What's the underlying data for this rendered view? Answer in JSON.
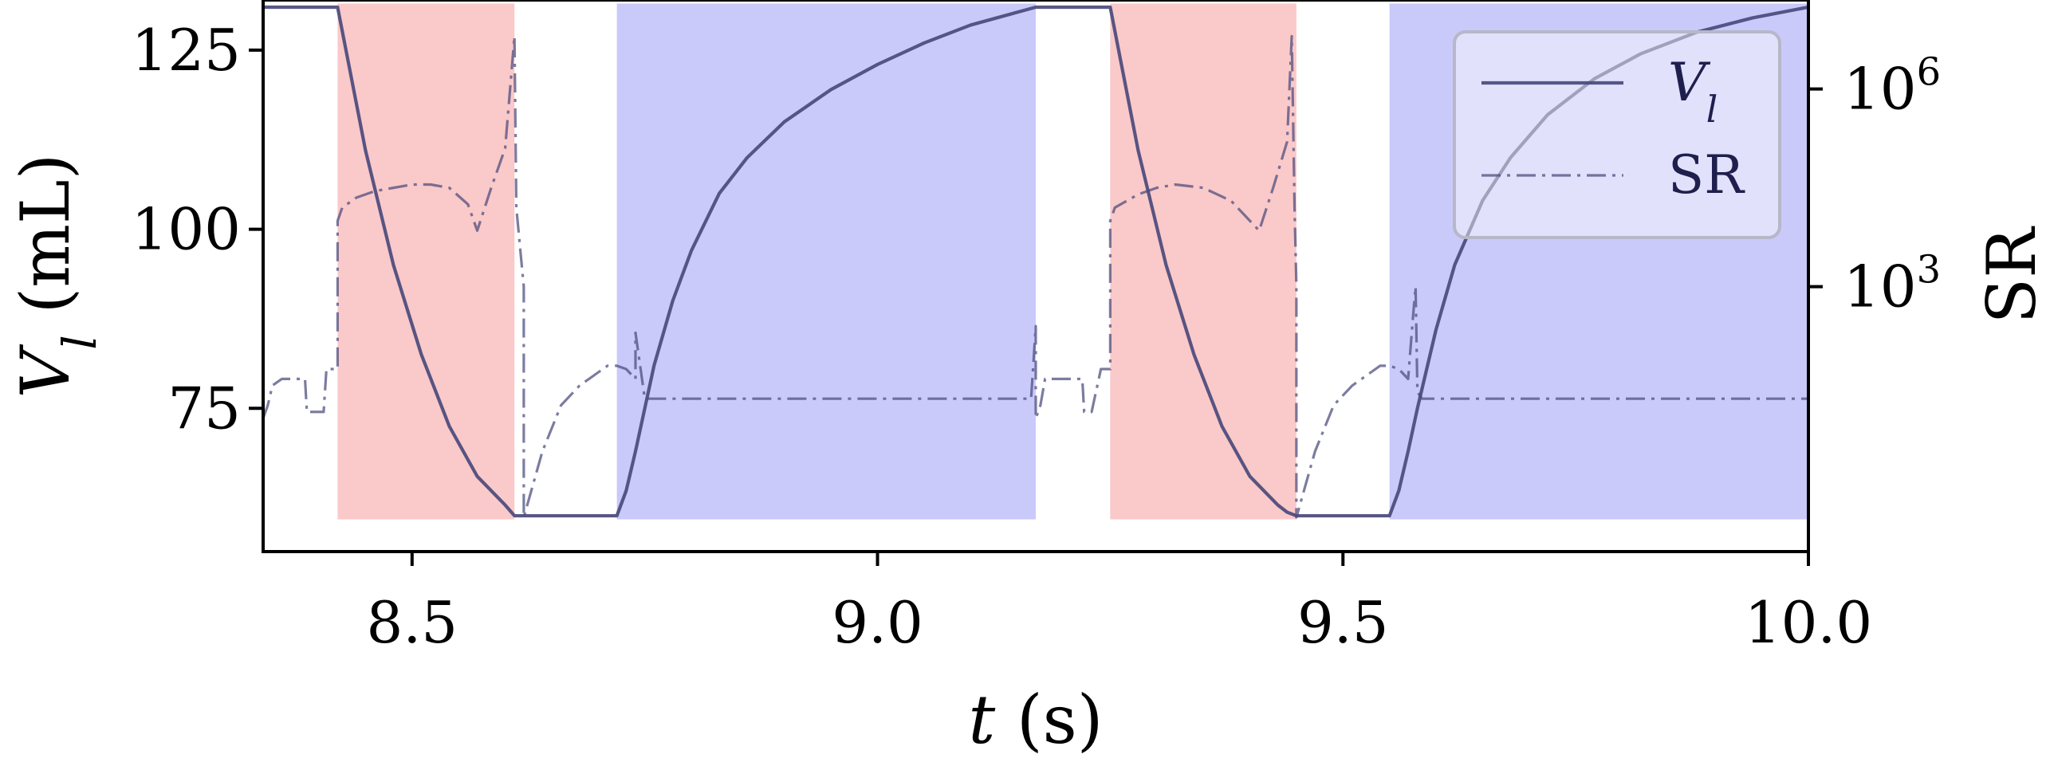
{
  "chart_data": {
    "type": "line",
    "title": "",
    "xlabel": "t (s)",
    "ylabel": "V_l (mL)",
    "y2label": "SR",
    "xlim": [
      8.34,
      10.0
    ],
    "ylim": [
      55,
      132
    ],
    "y2_scale": "log",
    "y2lim_exponents": [
      -1.02,
      7.35
    ],
    "grid": false,
    "legend_position": "top-right",
    "x_ticks": [
      8.5,
      9.0,
      9.5,
      10.0
    ],
    "x_tick_labels": [
      "8.5",
      "9.0",
      "9.5",
      "10.0"
    ],
    "y_ticks": [
      75,
      100,
      125
    ],
    "y_tick_labels": [
      "75",
      "100",
      "125"
    ],
    "y2_ticks": [
      3,
      6
    ],
    "y2_tick_labels": [
      "10^3",
      "10^6"
    ],
    "phases": [
      {
        "x": [
          8.42,
          8.61
        ],
        "phase": "ejection",
        "color": "#f8b4b4"
      },
      {
        "x": [
          8.72,
          9.17
        ],
        "phase": "filling",
        "color": "#b4b4f8"
      },
      {
        "x": [
          9.25,
          9.45
        ],
        "phase": "ejection",
        "color": "#f8b4b4"
      },
      {
        "x": [
          9.55,
          10.0
        ],
        "phase": "filling",
        "color": "#b4b4f8"
      }
    ],
    "series": [
      {
        "name": "V_l",
        "axis": "left",
        "style": "solid",
        "color": "#4a4a7c",
        "x": [
          8.34,
          8.42,
          8.45,
          8.48,
          8.51,
          8.54,
          8.57,
          8.6,
          8.61,
          8.72,
          8.73,
          8.74,
          8.75,
          8.76,
          8.78,
          8.8,
          8.83,
          8.86,
          8.9,
          8.95,
          9.0,
          9.05,
          9.1,
          9.17,
          9.25,
          9.28,
          9.31,
          9.34,
          9.37,
          9.4,
          9.43,
          9.44,
          9.45,
          9.55,
          9.56,
          9.57,
          9.58,
          9.6,
          9.62,
          9.65,
          9.68,
          9.72,
          9.77,
          9.82,
          9.88,
          9.94,
          10.0
        ],
        "values": [
          131,
          131,
          111,
          95,
          82.5,
          72.5,
          65.5,
          61.5,
          60,
          60,
          63.5,
          69,
          75,
          81,
          90,
          97,
          105,
          110,
          115,
          119.5,
          123,
          126,
          128.5,
          131,
          131,
          111,
          95,
          82.5,
          72.5,
          65.5,
          61.5,
          60.5,
          60,
          60,
          63.5,
          69,
          75,
          86,
          95,
          104,
          110,
          116,
          121,
          124.5,
          127.5,
          129.5,
          131
        ]
      },
      {
        "name": "SR",
        "axis": "right",
        "style": "dashdot",
        "color": "#4a4a7c",
        "x": [
          8.34,
          8.345,
          8.35,
          8.36,
          8.37,
          8.385,
          8.387,
          8.39,
          8.405,
          8.408,
          8.42,
          8.42,
          8.425,
          8.44,
          8.46,
          8.48,
          8.5,
          8.52,
          8.54,
          8.56,
          8.57,
          8.585,
          8.6,
          8.61,
          8.612,
          8.62,
          8.62,
          8.64,
          8.66,
          8.68,
          8.69,
          8.7,
          8.71,
          8.72,
          8.73,
          8.74,
          8.74,
          8.743,
          8.75,
          8.76,
          8.8,
          8.9,
          9.0,
          9.1,
          9.16,
          9.165,
          9.17,
          9.17,
          9.175,
          9.18,
          9.19,
          9.2,
          9.22,
          9.222,
          9.225,
          9.23,
          9.24,
          9.25,
          9.25,
          9.255,
          9.28,
          9.3,
          9.32,
          9.35,
          9.38,
          9.4,
          9.41,
          9.425,
          9.44,
          9.445,
          9.448,
          9.45,
          9.45,
          9.47,
          9.49,
          9.51,
          9.52,
          9.53,
          9.54,
          9.55,
          9.56,
          9.57,
          9.575,
          9.578,
          9.58,
          9.585,
          9.6,
          9.7,
          9.8,
          9.9,
          10.0
        ],
        "values": [
          1.0,
          1.2,
          1.5,
          1.6,
          1.6,
          1.6,
          1.1,
          1.1,
          1.1,
          1.75,
          1.75,
          4.0,
          4.2,
          4.35,
          4.45,
          4.5,
          4.55,
          4.55,
          4.5,
          4.25,
          3.85,
          4.5,
          5.1,
          6.8,
          4.2,
          3.0,
          -0.5,
          0.5,
          1.2,
          1.5,
          1.6,
          1.7,
          1.8,
          1.8,
          1.75,
          1.6,
          2.3,
          2.0,
          1.3,
          1.3,
          1.3,
          1.3,
          1.3,
          1.3,
          1.3,
          1.3,
          2.4,
          1.0,
          1.2,
          1.6,
          1.6,
          1.6,
          1.6,
          1.1,
          1.1,
          1.1,
          1.75,
          1.75,
          4.0,
          4.2,
          4.4,
          4.5,
          4.55,
          4.5,
          4.3,
          4.0,
          3.85,
          4.5,
          5.2,
          6.8,
          4.2,
          3.0,
          -0.5,
          0.5,
          1.2,
          1.5,
          1.6,
          1.7,
          1.8,
          1.8,
          1.75,
          1.6,
          2.5,
          3.0,
          1.4,
          1.3,
          1.3,
          1.3,
          1.3,
          1.3,
          1.3
        ]
      }
    ],
    "legend": [
      {
        "label": "V_l",
        "style": "solid"
      },
      {
        "label": "SR",
        "style": "dashdot"
      }
    ]
  }
}
